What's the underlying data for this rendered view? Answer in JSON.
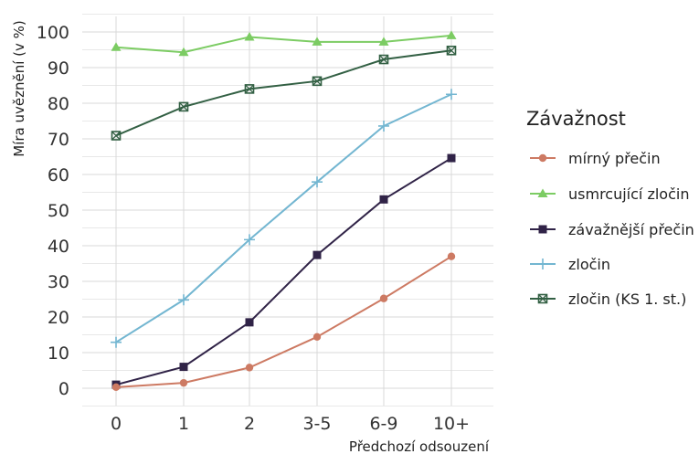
{
  "chart_data": {
    "type": "line",
    "ylabel": "Míra uvěznění (v %)",
    "xlabel": "Předchozí odsouzení",
    "categories": [
      "0",
      "1",
      "2",
      "3-5",
      "6-9",
      "10+"
    ],
    "ylim": [
      0,
      100
    ],
    "yticks": [
      0,
      10,
      20,
      30,
      40,
      50,
      60,
      70,
      80,
      90,
      100
    ],
    "grid": true,
    "legend": {
      "title": "Závažnost",
      "placement": "right"
    },
    "series": [
      {
        "name": "mírný přečin",
        "marker": "circle",
        "color": "#cd7a63",
        "values": [
          0.3,
          1.5,
          5.8,
          14.4,
          25.2,
          37.0
        ]
      },
      {
        "name": "usmrcující zločin",
        "marker": "triangle",
        "color": "#7ccc63",
        "values": [
          95.7,
          94.3,
          98.6,
          97.2,
          97.2,
          99.0
        ]
      },
      {
        "name": "závažnější přečin",
        "marker": "square",
        "color": "#302347",
        "values": [
          1.0,
          6.0,
          18.5,
          37.4,
          53.0,
          64.6
        ]
      },
      {
        "name": "zločin",
        "marker": "plus",
        "color": "#73b6d1",
        "values": [
          12.9,
          24.8,
          41.7,
          57.9,
          73.6,
          82.5
        ]
      },
      {
        "name": "zločin (KS 1. st.)",
        "marker": "boxed-x",
        "color": "#336044",
        "values": [
          70.9,
          79.0,
          84.0,
          86.2,
          92.3,
          94.8
        ]
      }
    ]
  }
}
